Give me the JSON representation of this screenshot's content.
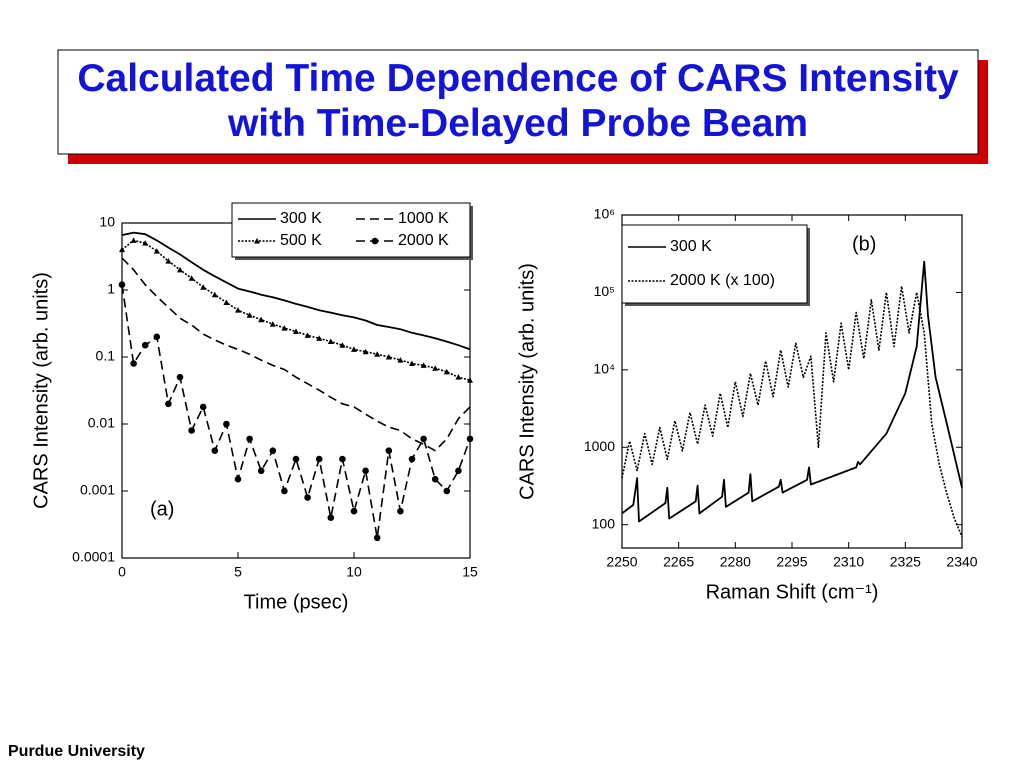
{
  "title": "Calculated Time Dependence of CARS Intensity with Time-Delayed Probe Beam",
  "footer": "Purdue University",
  "chart_data": [
    {
      "type": "line",
      "log_y": true,
      "grid": false,
      "legend": "top-right",
      "legend_columns": 2,
      "xlabel": "Time (psec)",
      "ylabel": "CARS Intensity (arb. units)",
      "annotation": "(a)",
      "x": [
        0,
        0.5,
        1,
        1.5,
        2,
        2.5,
        3,
        3.5,
        4,
        4.5,
        5,
        5.5,
        6,
        6.5,
        7,
        7.5,
        8,
        8.5,
        9,
        9.5,
        10,
        10.5,
        11,
        11.5,
        12,
        12.5,
        13,
        13.5,
        14,
        14.5,
        15
      ],
      "xlim": [
        0,
        15
      ],
      "xticks": [
        0,
        5,
        10,
        15
      ],
      "ylim": [
        0.0001,
        10
      ],
      "yticks": [
        0.0001,
        0.001,
        0.01,
        0.1,
        1,
        10
      ],
      "series": [
        {
          "name": "300 K",
          "color": "#000000",
          "dash": "solid",
          "marker": null,
          "values": [
            6.6,
            7.2,
            6.8,
            5.5,
            4.3,
            3.4,
            2.6,
            2.0,
            1.6,
            1.3,
            1.05,
            0.95,
            0.85,
            0.78,
            0.7,
            0.62,
            0.56,
            0.5,
            0.46,
            0.42,
            0.39,
            0.35,
            0.3,
            0.28,
            0.26,
            0.23,
            0.21,
            0.19,
            0.17,
            0.15,
            0.13
          ]
        },
        {
          "name": "500 K",
          "color": "#000000",
          "dash": "dotted",
          "marker": "triangle",
          "values": [
            4,
            5.5,
            5,
            3.8,
            2.7,
            2.0,
            1.5,
            1.1,
            0.85,
            0.65,
            0.5,
            0.42,
            0.36,
            0.31,
            0.27,
            0.24,
            0.21,
            0.19,
            0.17,
            0.15,
            0.13,
            0.12,
            0.11,
            0.1,
            0.09,
            0.08,
            0.075,
            0.068,
            0.06,
            0.05,
            0.045
          ]
        },
        {
          "name": "1000 K",
          "color": "#000000",
          "dash": "dashed",
          "marker": null,
          "values": [
            3,
            2,
            1.2,
            0.8,
            0.55,
            0.38,
            0.3,
            0.22,
            0.18,
            0.15,
            0.13,
            0.11,
            0.09,
            0.075,
            0.065,
            0.05,
            0.04,
            0.032,
            0.025,
            0.02,
            0.018,
            0.014,
            0.011,
            0.009,
            0.008,
            0.006,
            0.005,
            0.004,
            0.006,
            0.012,
            0.018
          ]
        },
        {
          "name": "2000 K",
          "color": "#000000",
          "dash": "dashed",
          "marker": "circle",
          "values": [
            1.2,
            0.08,
            0.15,
            0.2,
            0.02,
            0.05,
            0.008,
            0.018,
            0.004,
            0.01,
            0.0015,
            0.006,
            0.002,
            0.004,
            0.001,
            0.003,
            0.0008,
            0.003,
            0.0004,
            0.003,
            0.0005,
            0.002,
            0.0002,
            0.004,
            0.0005,
            0.003,
            0.006,
            0.0015,
            0.001,
            0.002,
            0.006
          ]
        }
      ]
    },
    {
      "type": "line",
      "log_y": true,
      "grid": false,
      "legend": "top-left",
      "legend_columns": 1,
      "xlabel": "Raman Shift (cm⁻¹)",
      "ylabel": "CARS Intensity (arb. units)",
      "annotation": "(b)",
      "xlim": [
        2250,
        2340
      ],
      "xticks": [
        2250,
        2265,
        2280,
        2295,
        2310,
        2325,
        2340
      ],
      "ylim": [
        50,
        1000000
      ],
      "yticks": [
        100,
        1000,
        {
          "value": 10000,
          "label": "10⁴"
        },
        {
          "value": 100000,
          "label": "10⁵"
        },
        {
          "value": 1000000,
          "label": "10⁶"
        }
      ],
      "series": [
        {
          "name": "300 K",
          "color": "#000000",
          "dash": "solid",
          "marker": null,
          "x": [
            2250,
            2253,
            2254,
            2254.5,
            2261.5,
            2262,
            2262.5,
            2269.5,
            2270,
            2270.5,
            2276.5,
            2277,
            2277.5,
            2283.5,
            2284,
            2284.5,
            2291.5,
            2292,
            2292.5,
            2299,
            2299.5,
            2300,
            2312,
            2312.5,
            2313,
            2320,
            2325,
            2328,
            2330,
            2331,
            2333,
            2336,
            2340
          ],
          "values": [
            140,
            180,
            400,
            110,
            190,
            300,
            120,
            200,
            320,
            140,
            230,
            380,
            170,
            260,
            450,
            200,
            310,
            380,
            260,
            380,
            550,
            330,
            550,
            650,
            600,
            1500,
            5000,
            20000,
            250000,
            50000,
            8000,
            2000,
            300
          ]
        },
        {
          "name": "2000 K (x 100)",
          "color": "#000000",
          "dash": "dotted",
          "marker": null,
          "x": [
            2250,
            2252,
            2254,
            2256,
            2258,
            2260,
            2262,
            2264,
            2266,
            2268,
            2270,
            2272,
            2274,
            2276,
            2278,
            2280,
            2282,
            2284,
            2286,
            2288,
            2290,
            2292,
            2294,
            2296,
            2298,
            2300,
            2302,
            2304,
            2306,
            2308,
            2310,
            2312,
            2314,
            2316,
            2318,
            2320,
            2322,
            2324,
            2326,
            2328,
            2330,
            2332,
            2334,
            2336,
            2338,
            2340
          ],
          "values": [
            400,
            1200,
            500,
            1500,
            600,
            1800,
            700,
            2200,
            900,
            2800,
            1100,
            3500,
            1400,
            5000,
            1800,
            7000,
            2500,
            9000,
            3500,
            13000,
            4500,
            18000,
            6000,
            22000,
            8000,
            15000,
            1000,
            30000,
            7000,
            40000,
            10000,
            55000,
            14000,
            80000,
            18000,
            100000,
            20000,
            120000,
            30000,
            100000,
            30000,
            2000,
            600,
            250,
            120,
            70
          ]
        }
      ]
    }
  ]
}
